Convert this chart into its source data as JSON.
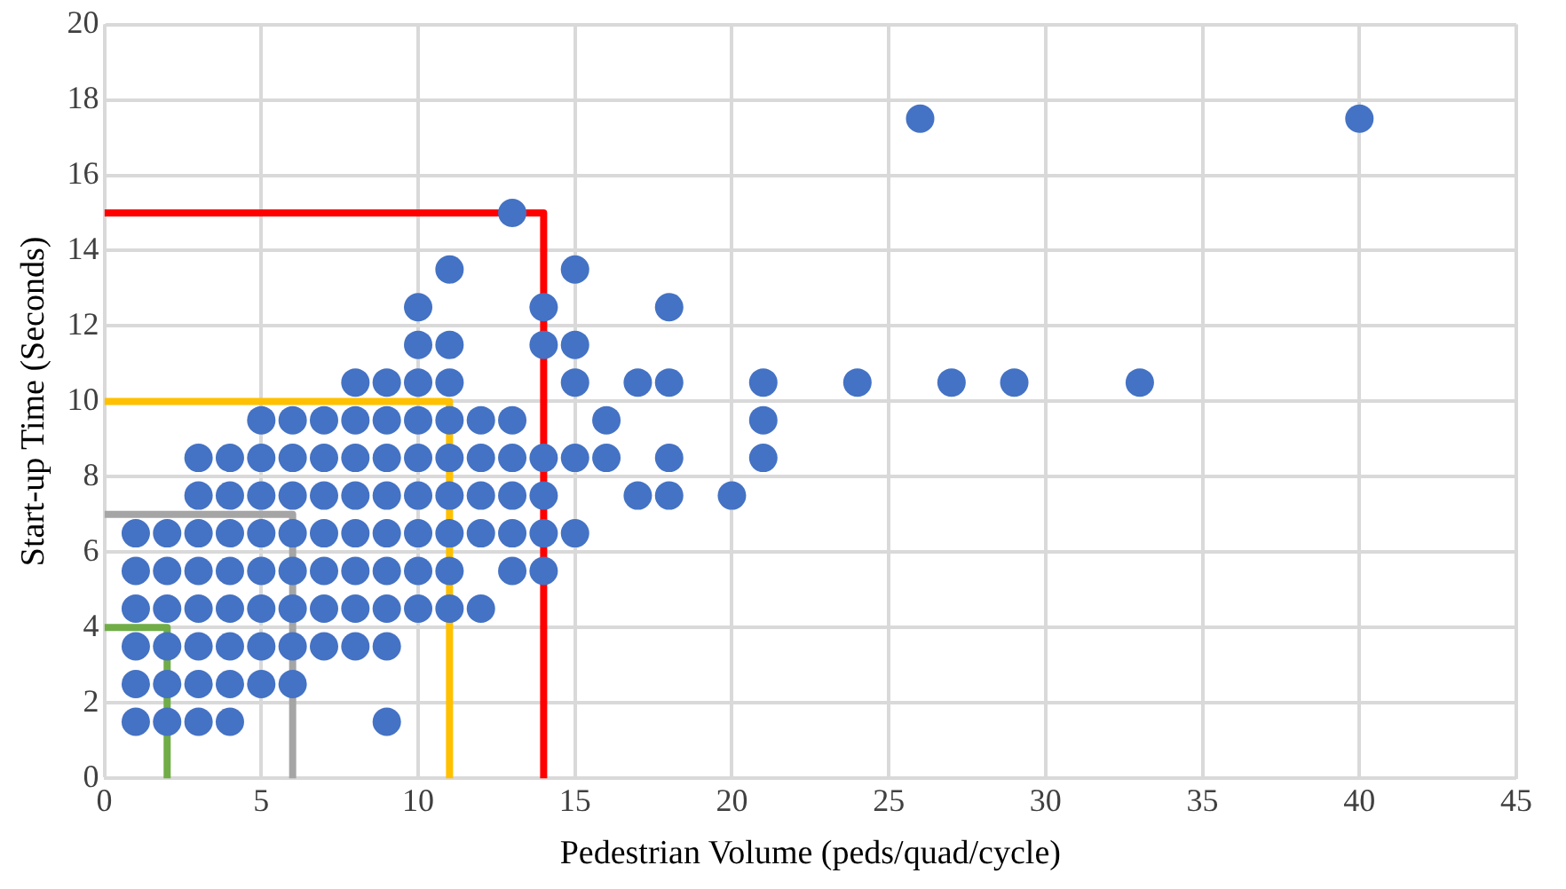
{
  "chart_data": {
    "type": "scatter",
    "xlabel": "Pedestrian Volume (peds/quad/cycle)",
    "ylabel": "Start-up Time (Seconds)",
    "xlim": [
      0,
      45
    ],
    "xticks": [
      0,
      5,
      10,
      15,
      20,
      25,
      30,
      35,
      40,
      45
    ],
    "ylim": [
      0,
      20
    ],
    "yticks": [
      0,
      2,
      4,
      6,
      8,
      10,
      12,
      14,
      16,
      18,
      20
    ],
    "grid": true,
    "legend": false,
    "series": [
      {
        "type": "line",
        "color": "#70ad47",
        "marker": "none",
        "x": [
          0,
          2,
          2
        ],
        "values": [
          4,
          4,
          0
        ]
      },
      {
        "type": "line",
        "color": "#a5a5a5",
        "marker": "none",
        "x": [
          0,
          6,
          6
        ],
        "values": [
          7,
          7,
          0
        ]
      },
      {
        "type": "line",
        "color": "#ffc000",
        "marker": "none",
        "x": [
          0,
          11,
          11
        ],
        "values": [
          10,
          10,
          0
        ]
      },
      {
        "type": "line",
        "color": "#ff0000",
        "marker": "none",
        "x": [
          0,
          14,
          14
        ],
        "values": [
          15,
          15,
          0
        ]
      },
      {
        "type": "scatter",
        "color": "#4472c4",
        "marker": "circle",
        "x": [
          1,
          2,
          3,
          4,
          9,
          1,
          2,
          3,
          4,
          5,
          6,
          1,
          2,
          3,
          4,
          5,
          6,
          7,
          8,
          9,
          1,
          2,
          3,
          4,
          5,
          6,
          7,
          8,
          9,
          10,
          11,
          12,
          1,
          2,
          3,
          4,
          5,
          6,
          7,
          8,
          9,
          10,
          11,
          13,
          14,
          1,
          2,
          3,
          4,
          5,
          6,
          7,
          8,
          9,
          10,
          11,
          12,
          13,
          14,
          15,
          3,
          4,
          5,
          6,
          7,
          8,
          9,
          10,
          11,
          12,
          13,
          14,
          17,
          18,
          20,
          3,
          4,
          5,
          6,
          7,
          8,
          9,
          10,
          11,
          12,
          13,
          14,
          15,
          16,
          18,
          21,
          5,
          6,
          7,
          8,
          9,
          10,
          11,
          12,
          13,
          16,
          21,
          8,
          9,
          10,
          11,
          15,
          17,
          18,
          21,
          24,
          27,
          29,
          33,
          10,
          11,
          14,
          15,
          10,
          14,
          18,
          11,
          15,
          13,
          26,
          40
        ],
        "values": [
          1.5,
          1.5,
          1.5,
          1.5,
          1.5,
          2.5,
          2.5,
          2.5,
          2.5,
          2.5,
          2.5,
          3.5,
          3.5,
          3.5,
          3.5,
          3.5,
          3.5,
          3.5,
          3.5,
          3.5,
          4.5,
          4.5,
          4.5,
          4.5,
          4.5,
          4.5,
          4.5,
          4.5,
          4.5,
          4.5,
          4.5,
          4.5,
          5.5,
          5.5,
          5.5,
          5.5,
          5.5,
          5.5,
          5.5,
          5.5,
          5.5,
          5.5,
          5.5,
          5.5,
          5.5,
          6.5,
          6.5,
          6.5,
          6.5,
          6.5,
          6.5,
          6.5,
          6.5,
          6.5,
          6.5,
          6.5,
          6.5,
          6.5,
          6.5,
          6.5,
          7.5,
          7.5,
          7.5,
          7.5,
          7.5,
          7.5,
          7.5,
          7.5,
          7.5,
          7.5,
          7.5,
          7.5,
          7.5,
          7.5,
          7.5,
          8.5,
          8.5,
          8.5,
          8.5,
          8.5,
          8.5,
          8.5,
          8.5,
          8.5,
          8.5,
          8.5,
          8.5,
          8.5,
          8.5,
          8.5,
          8.5,
          9.5,
          9.5,
          9.5,
          9.5,
          9.5,
          9.5,
          9.5,
          9.5,
          9.5,
          9.5,
          9.5,
          10.5,
          10.5,
          10.5,
          10.5,
          10.5,
          10.5,
          10.5,
          10.5,
          10.5,
          10.5,
          10.5,
          10.5,
          11.5,
          11.5,
          11.5,
          11.5,
          12.5,
          12.5,
          12.5,
          13.5,
          13.5,
          15,
          17.5,
          17.5
        ]
      }
    ]
  }
}
